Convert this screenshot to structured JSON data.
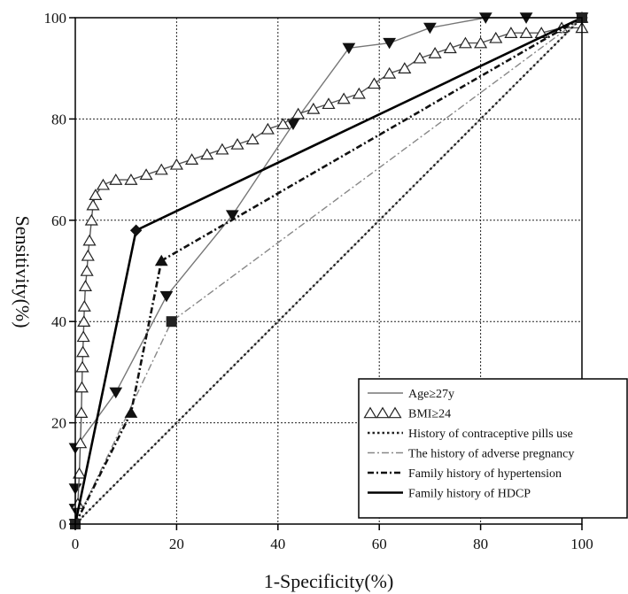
{
  "chart_data": {
    "type": "line",
    "title": "",
    "xlabel": "1-Specificity(%)",
    "ylabel": "Sensitivity(%)",
    "xlim": [
      0,
      100
    ],
    "ylim": [
      0,
      100
    ],
    "x_ticks": [
      "0",
      "20",
      "40",
      "60",
      "80",
      "100"
    ],
    "y_ticks": [
      "0",
      "20",
      "40",
      "60",
      "80",
      "100"
    ],
    "grid": true,
    "legend_position": "bottom-right",
    "series": [
      {
        "name": "Age≥27y",
        "line": "solid-thin",
        "color": "#777777",
        "marker": "triangle-down",
        "points": [
          [
            0,
            0
          ],
          [
            0,
            3
          ],
          [
            0,
            7
          ],
          [
            0,
            15
          ],
          [
            8,
            26
          ],
          [
            18,
            45
          ],
          [
            31,
            61
          ],
          [
            43,
            79
          ],
          [
            54,
            94
          ],
          [
            62,
            95
          ],
          [
            70,
            98
          ],
          [
            81,
            100
          ],
          [
            89,
            100
          ],
          [
            100,
            100
          ]
        ]
      },
      {
        "name": "BMI≥24",
        "line": "solid-thin",
        "color": "#555555",
        "marker": "triangle-open",
        "points": [
          [
            0,
            0
          ],
          [
            0.5,
            4
          ],
          [
            0.8,
            10
          ],
          [
            1,
            16
          ],
          [
            1.2,
            22
          ],
          [
            1.3,
            27
          ],
          [
            1.4,
            31
          ],
          [
            1.5,
            34
          ],
          [
            1.6,
            37
          ],
          [
            1.7,
            40
          ],
          [
            1.8,
            43
          ],
          [
            2,
            47
          ],
          [
            2.3,
            50
          ],
          [
            2.5,
            53
          ],
          [
            2.8,
            56
          ],
          [
            3.2,
            60
          ],
          [
            3.5,
            63
          ],
          [
            4,
            65
          ],
          [
            5.5,
            67
          ],
          [
            8,
            68
          ],
          [
            11,
            68
          ],
          [
            14,
            69
          ],
          [
            17,
            70
          ],
          [
            20,
            71
          ],
          [
            23,
            72
          ],
          [
            26,
            73
          ],
          [
            29,
            74
          ],
          [
            32,
            75
          ],
          [
            35,
            76
          ],
          [
            38,
            78
          ],
          [
            41,
            79
          ],
          [
            44,
            81
          ],
          [
            47,
            82
          ],
          [
            50,
            83
          ],
          [
            53,
            84
          ],
          [
            56,
            85
          ],
          [
            59,
            87
          ],
          [
            62,
            89
          ],
          [
            65,
            90
          ],
          [
            68,
            92
          ],
          [
            71,
            93
          ],
          [
            74,
            94
          ],
          [
            77,
            95
          ],
          [
            80,
            95
          ],
          [
            83,
            96
          ],
          [
            86,
            97
          ],
          [
            89,
            97
          ],
          [
            92,
            97
          ],
          [
            96,
            98
          ],
          [
            100,
            98
          ]
        ]
      },
      {
        "name": "History of contraceptive pills use",
        "line": "dotted",
        "color": "#222222",
        "marker": "none",
        "points": [
          [
            0,
            0
          ],
          [
            100,
            100
          ]
        ]
      },
      {
        "name": "The history of adverse pregnancy",
        "line": "dashdot-light",
        "color": "#888888",
        "marker": "square",
        "points": [
          [
            0,
            0
          ],
          [
            19,
            40
          ],
          [
            100,
            100
          ]
        ]
      },
      {
        "name": "Family history of hypertension",
        "line": "dashdot-heavy",
        "color": "#111111",
        "marker": "triangle-up",
        "points": [
          [
            0,
            0
          ],
          [
            11,
            22
          ],
          [
            17,
            52
          ],
          [
            100,
            100
          ]
        ]
      },
      {
        "name": "Family history of HDCP",
        "line": "solid-thick",
        "color": "#000000",
        "marker": "diamond",
        "points": [
          [
            0,
            0
          ],
          [
            12,
            58
          ],
          [
            100,
            100
          ]
        ]
      }
    ]
  }
}
